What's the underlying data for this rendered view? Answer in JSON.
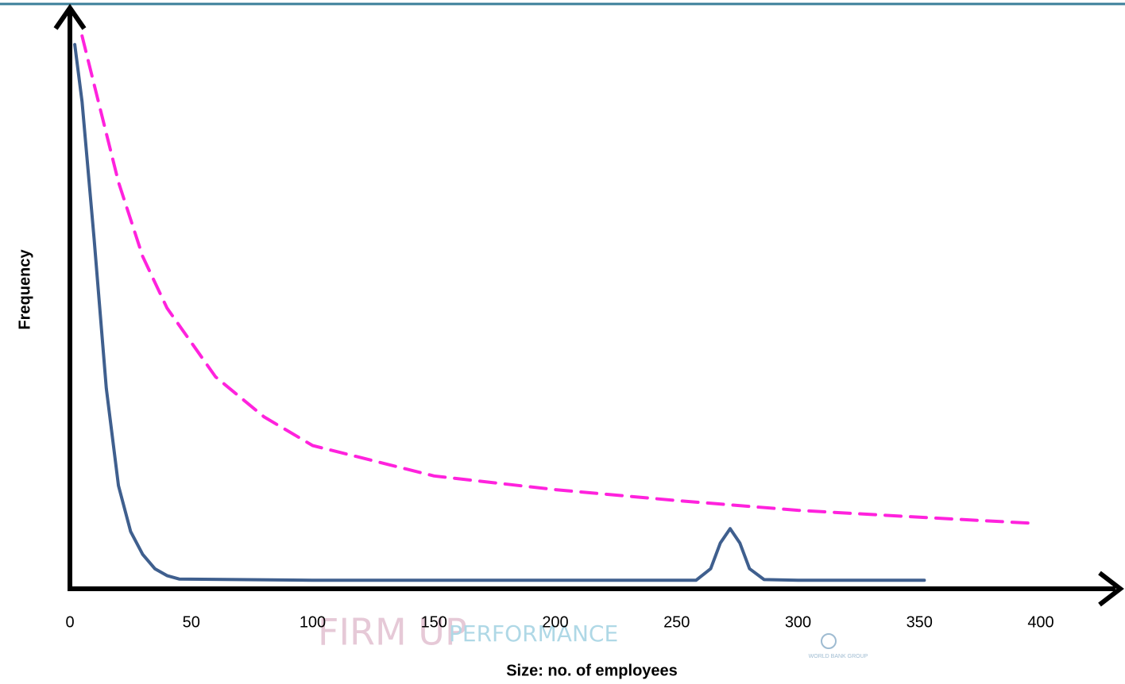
{
  "chart_data": {
    "type": "line",
    "x_label": "Size: no. of employees",
    "y_label": "Frequency",
    "xlim": [
      0,
      400
    ],
    "xticks": [
      0,
      50,
      100,
      150,
      200,
      250,
      300,
      350,
      400
    ],
    "ylim": [
      0,
      100
    ],
    "grid": false,
    "watermark": [
      "FIRM UP",
      "PERFORMANCE",
      "WORLD BANK GROUP"
    ],
    "series": [
      {
        "color": "#3f5f8e",
        "dashed": false,
        "x": [
          2,
          5,
          10,
          15,
          20,
          25,
          30,
          35,
          40,
          45,
          100,
          200,
          258,
          264,
          268,
          272,
          276,
          280,
          286,
          300,
          352
        ],
        "values": [
          95,
          85,
          61,
          35,
          18,
          10,
          6,
          3.5,
          2.3,
          1.7,
          1.5,
          1.5,
          1.5,
          3.5,
          8,
          10.5,
          8,
          3.5,
          1.6,
          1.5,
          1.5
        ]
      },
      {
        "color": "#ff22dd",
        "dashed": true,
        "x": [
          5,
          10,
          20,
          30,
          40,
          60,
          80,
          100,
          150,
          200,
          250,
          300,
          350,
          398
        ],
        "values": [
          96.5,
          88,
          71,
          58,
          49,
          37,
          30,
          25,
          19.7,
          17.3,
          15.4,
          13.7,
          12.5,
          11.4
        ]
      }
    ]
  }
}
